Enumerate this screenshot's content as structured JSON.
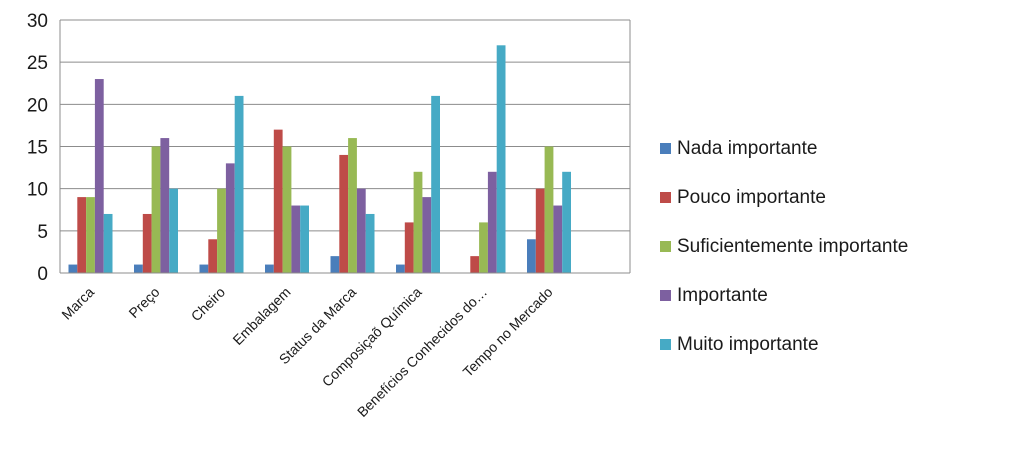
{
  "chart_data": {
    "type": "bar",
    "title": "",
    "xlabel": "",
    "ylabel": "",
    "ylim": [
      0,
      30
    ],
    "yticks": [
      0,
      5,
      10,
      15,
      20,
      25,
      30
    ],
    "grid": true,
    "legend_position": "right",
    "categories": [
      "Marca",
      "Preço",
      "Cheiro",
      "Embalagem",
      "Status da Marca",
      "Composiçaõ Química",
      "Benefícios Conhecidos do…",
      "Tempo no Mercado"
    ],
    "series": [
      {
        "name": "Nada importante",
        "color": "#4a7ebb",
        "values": [
          1,
          1,
          1,
          1,
          2,
          1,
          0,
          4
        ]
      },
      {
        "name": "Pouco importante",
        "color": "#be4b48",
        "values": [
          9,
          7,
          4,
          17,
          14,
          6,
          2,
          10
        ]
      },
      {
        "name": "Suficientemente importante",
        "color": "#98b954",
        "values": [
          9,
          15,
          10,
          15,
          16,
          12,
          6,
          15
        ]
      },
      {
        "name": "Importante",
        "color": "#7d60a0",
        "values": [
          23,
          16,
          13,
          8,
          10,
          9,
          12,
          8
        ]
      },
      {
        "name": "Muito importante",
        "color": "#46aac5",
        "values": [
          7,
          10,
          21,
          8,
          7,
          21,
          27,
          12
        ]
      }
    ]
  }
}
